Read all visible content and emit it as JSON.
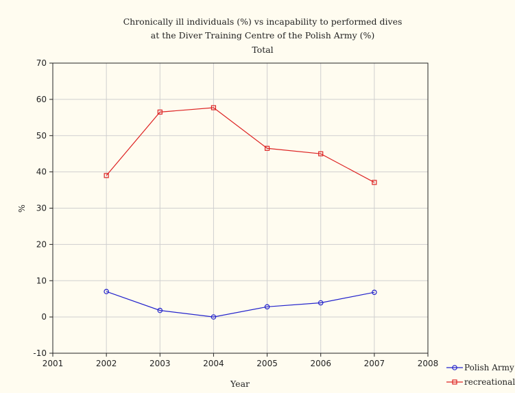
{
  "chart_data": {
    "type": "line",
    "title": "Chronically ill individuals (%) vs incapability to performed dives",
    "subtitle": "at the Diver Training Centre of the Polish Army (%)",
    "subtitle2": "Total",
    "xlabel": "Year",
    "ylabel": "%",
    "xlim": [
      2001,
      2008
    ],
    "ylim": [
      -10,
      70
    ],
    "xticks": [
      2001,
      2002,
      2003,
      2004,
      2005,
      2006,
      2007,
      2008
    ],
    "yticks": [
      -10,
      0,
      10,
      20,
      30,
      40,
      50,
      60,
      70
    ],
    "grid": true,
    "legend": "bottom-right",
    "x": [
      2002,
      2003,
      2004,
      2005,
      2006,
      2007
    ],
    "series": [
      {
        "name": "Polish Army",
        "color": "#2222cc",
        "marker": "circle",
        "values": [
          7.0,
          1.8,
          0.0,
          2.8,
          3.9,
          6.8
        ]
      },
      {
        "name": "recreational",
        "color": "#dd2222",
        "marker": "square",
        "values": [
          39.0,
          56.5,
          57.7,
          46.5,
          45.0,
          37.1
        ]
      }
    ]
  }
}
